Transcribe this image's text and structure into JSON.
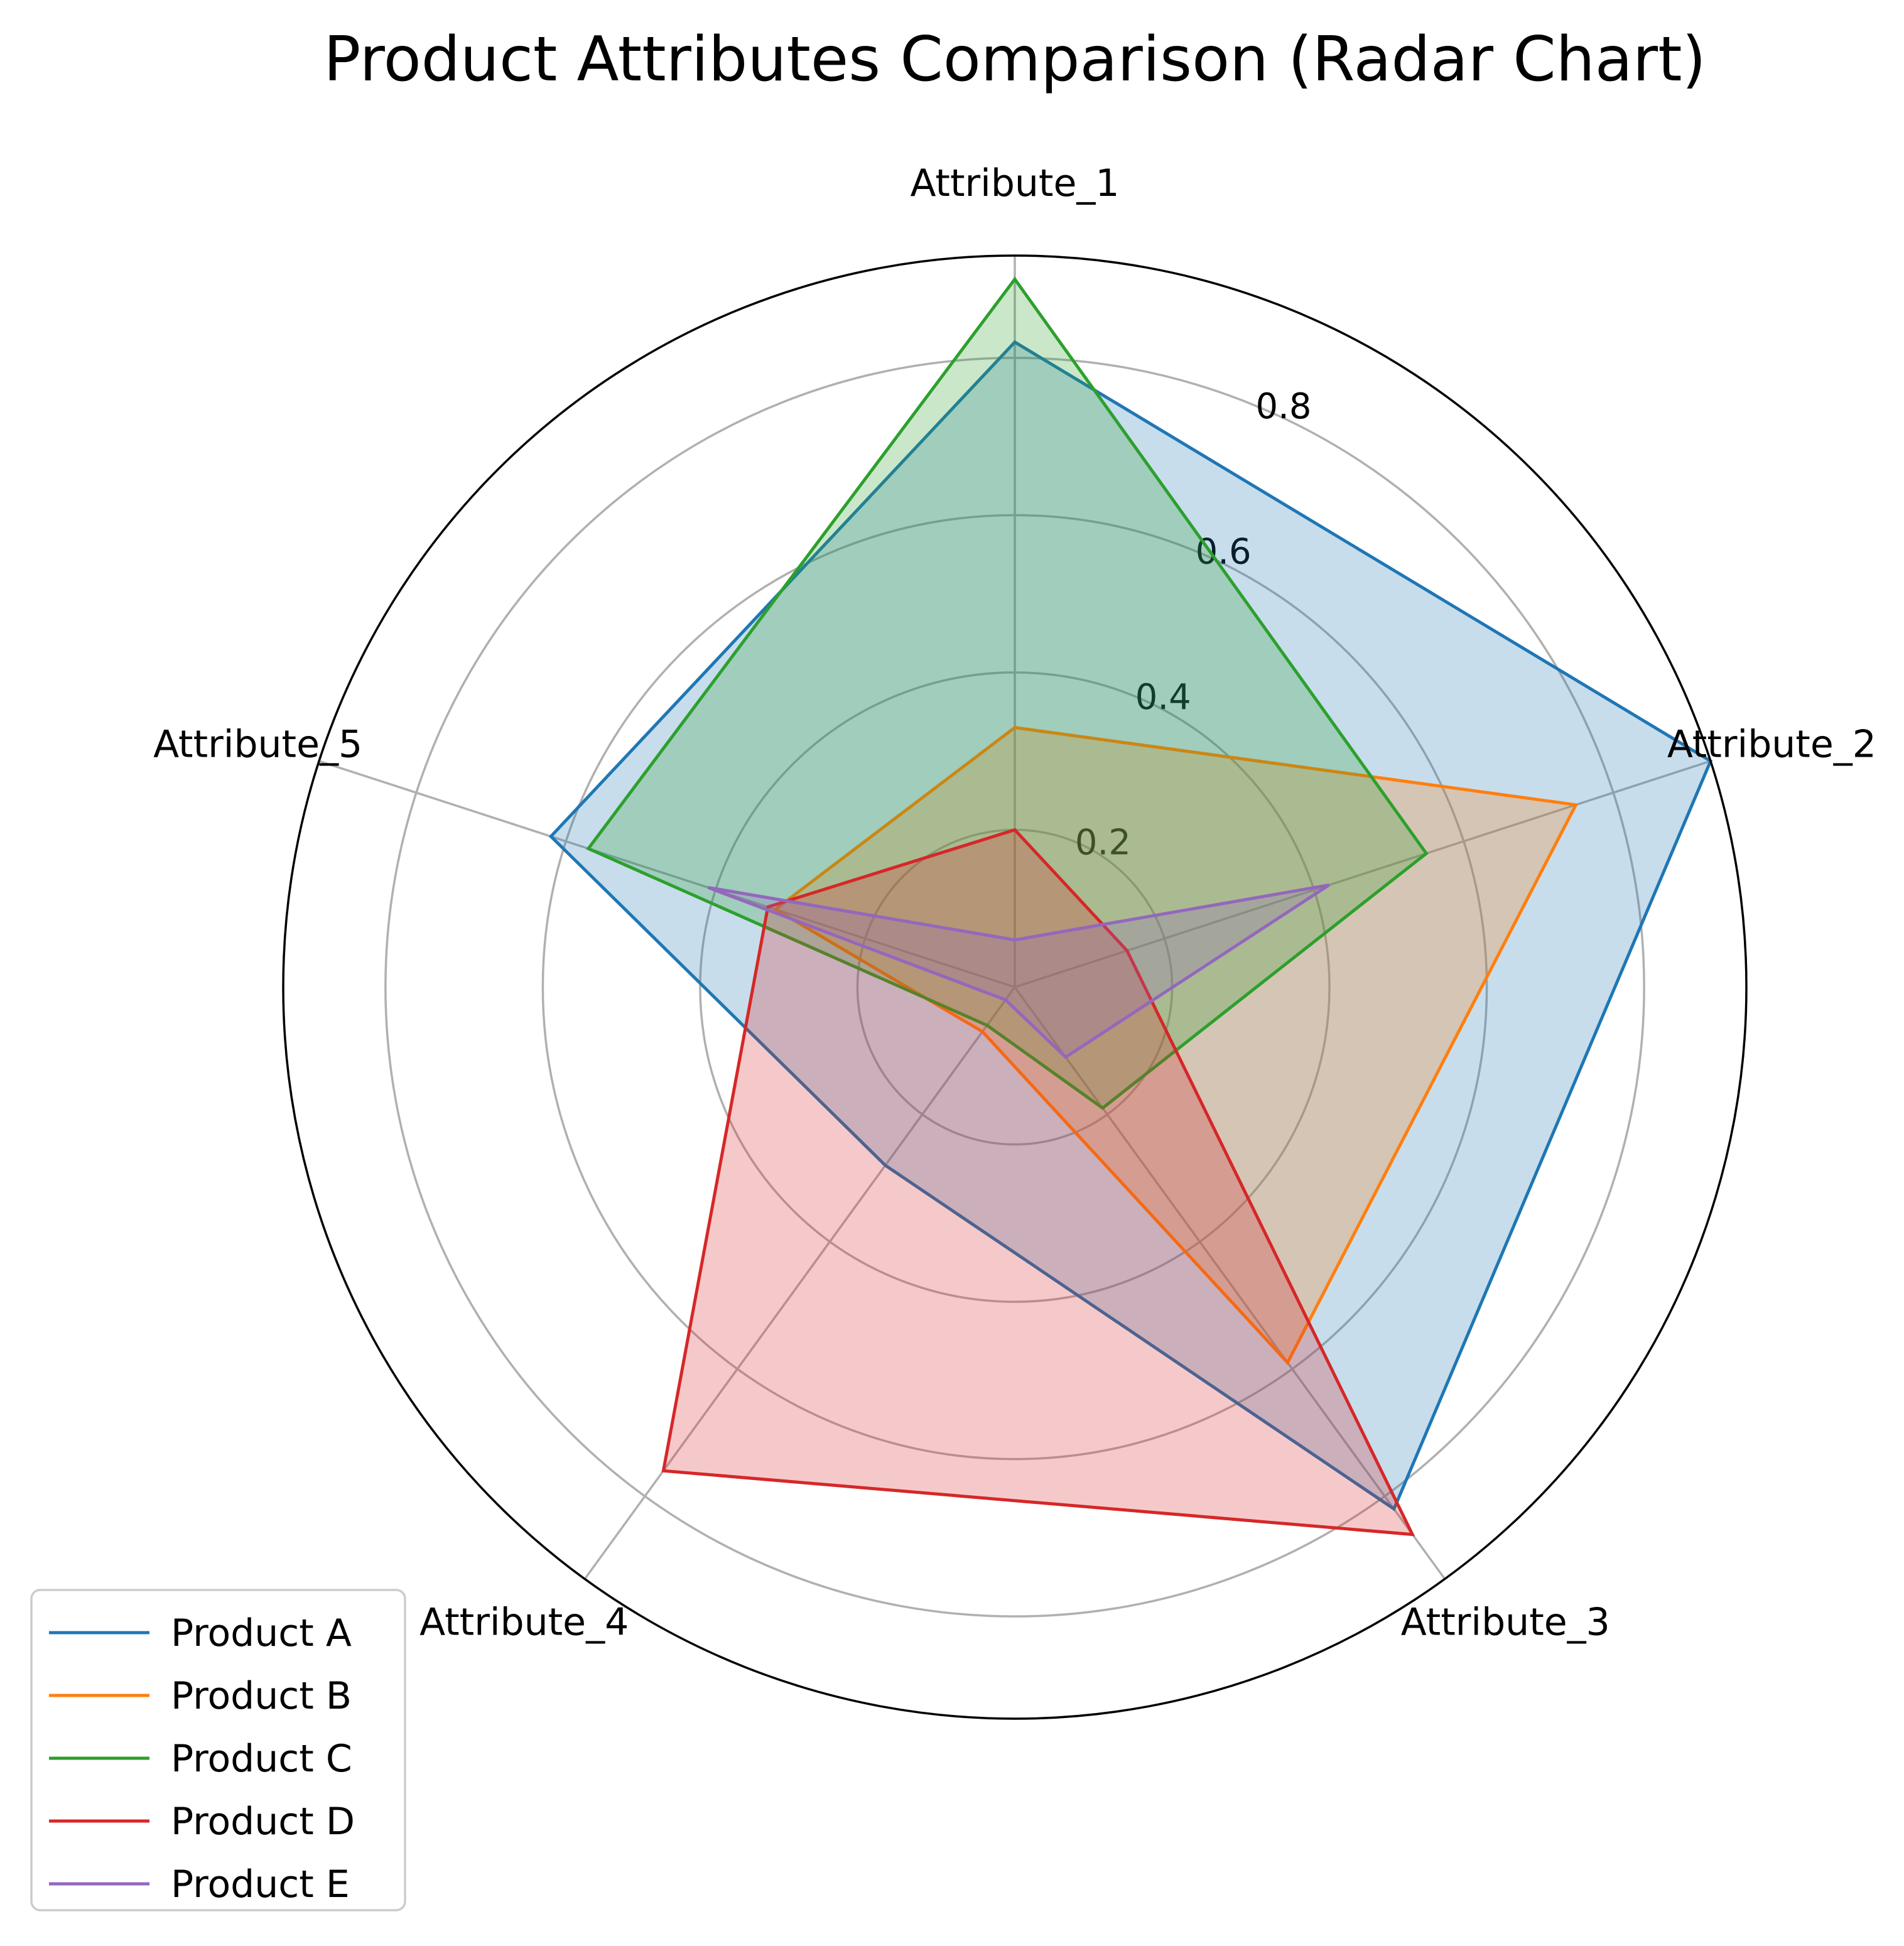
{
  "chart_data": {
    "type": "radar",
    "title": "Product Attributes Comparison (Radar Chart)",
    "axes": [
      "Attribute_1",
      "Attribute_2",
      "Attribute_3",
      "Attribute_4",
      "Attribute_5"
    ],
    "rlim": [
      0,
      0.93
    ],
    "rticks": [
      0.2,
      0.4,
      0.6,
      0.8
    ],
    "rtick_labels": [
      "0.2",
      "0.4",
      "0.6",
      "0.8"
    ],
    "grid": true,
    "legend_position": "lower-left",
    "series": [
      {
        "name": "Product A",
        "color": "#1f77b4",
        "values": [
          0.82,
          0.93,
          0.82,
          0.28,
          0.62
        ]
      },
      {
        "name": "Product B",
        "color": "#ff7f0e",
        "values": [
          0.33,
          0.75,
          0.59,
          0.07,
          0.32
        ]
      },
      {
        "name": "Product C",
        "color": "#2ca02c",
        "values": [
          0.9,
          0.55,
          0.19,
          0.06,
          0.57
        ]
      },
      {
        "name": "Product D",
        "color": "#d62728",
        "values": [
          0.2,
          0.15,
          0.86,
          0.76,
          0.33
        ]
      },
      {
        "name": "Product E",
        "color": "#9467bd",
        "values": [
          0.06,
          0.42,
          0.11,
          0.02,
          0.41
        ]
      }
    ]
  }
}
